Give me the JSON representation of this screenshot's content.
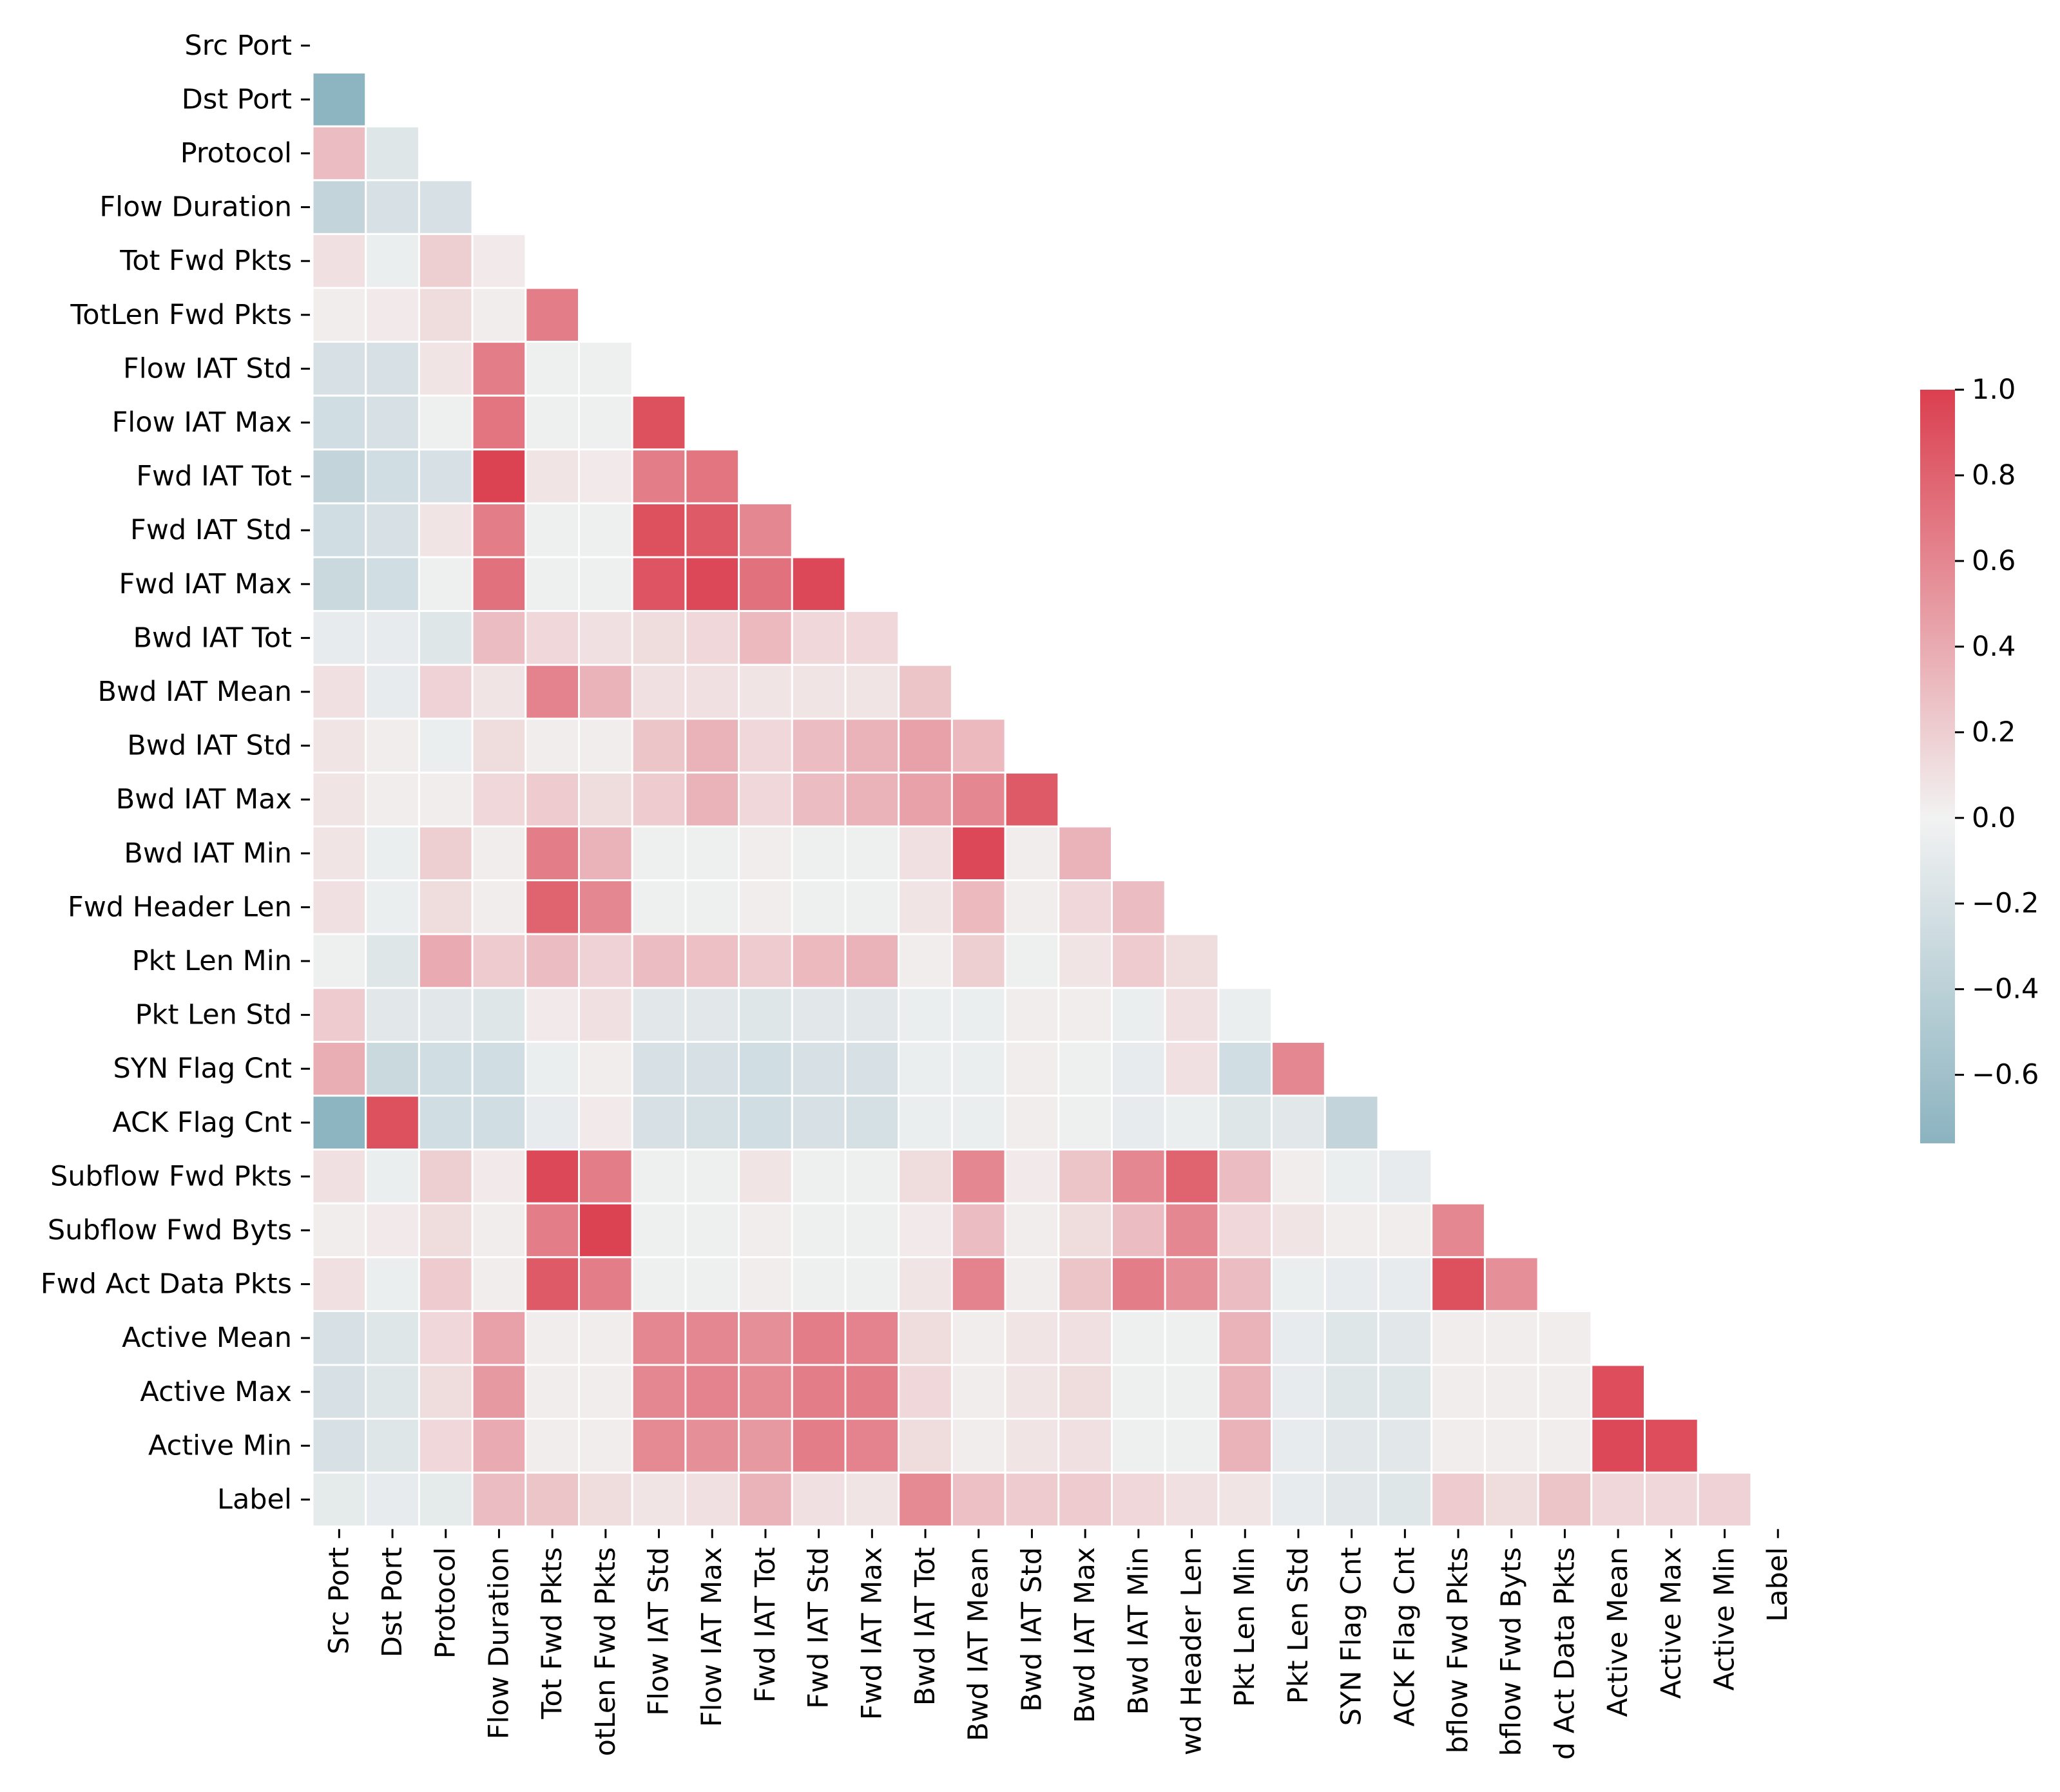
{
  "chart_data": {
    "type": "heatmap",
    "title": "",
    "xlabel": "",
    "ylabel": "",
    "labels": [
      "Src Port",
      "Dst Port",
      "Protocol",
      "Flow Duration",
      "Tot Fwd Pkts",
      "TotLen Fwd Pkts",
      "Flow IAT Std",
      "Flow IAT Max",
      "Fwd IAT Tot",
      "Fwd IAT Std",
      "Fwd IAT Max",
      "Bwd IAT Tot",
      "Bwd IAT Mean",
      "Bwd IAT Std",
      "Bwd IAT Max",
      "Bwd IAT Min",
      "Fwd Header Len",
      "Pkt Len Min",
      "Pkt Len Std",
      "SYN Flag Cnt",
      "ACK Flag Cnt",
      "Subflow Fwd Pkts",
      "Subflow Fwd Byts",
      "Fwd Act Data Pkts",
      "Active Mean",
      "Active Max",
      "Active Min",
      "Label"
    ],
    "x_tick_labels": [
      "Src Port",
      "Dst Port",
      "Protocol",
      "Flow Duration",
      "Tot Fwd Pkts",
      "otLen Fwd Pkts",
      "Flow IAT Std",
      "Flow IAT Max",
      "Fwd IAT Tot",
      "Fwd IAT Std",
      "Fwd IAT Max",
      "Bwd IAT Tot",
      "Bwd IAT Mean",
      "Bwd IAT Std",
      "Bwd IAT Max",
      "Bwd IAT Min",
      "wd Header Len",
      "Pkt Len Min",
      "Pkt Len Std",
      "SYN Flag Cnt",
      "ACK Flag Cnt",
      "bflow Fwd Pkts",
      "bflow Fwd Byts",
      "d Act Data Pkts",
      "Active Mean",
      "Active Max",
      "Active Min",
      "Label"
    ],
    "mask": "upper triangle including diagonal",
    "matrix": [
      [],
      [
        -0.75
      ],
      [
        0.3,
        -0.15
      ],
      [
        -0.35,
        -0.2,
        -0.2
      ],
      [
        0.1,
        -0.05,
        0.2,
        0.05
      ],
      [
        0.03,
        0.05,
        0.12,
        0.03,
        0.65
      ],
      [
        -0.2,
        -0.2,
        0.08,
        0.65,
        -0.03,
        -0.03
      ],
      [
        -0.25,
        -0.2,
        -0.03,
        0.7,
        -0.03,
        -0.03,
        0.9
      ],
      [
        -0.35,
        -0.25,
        -0.2,
        0.98,
        0.08,
        0.05,
        0.65,
        0.7
      ],
      [
        -0.25,
        -0.2,
        0.08,
        0.65,
        -0.03,
        -0.03,
        0.9,
        0.85,
        0.6
      ],
      [
        -0.3,
        -0.25,
        -0.03,
        0.72,
        -0.03,
        -0.03,
        0.88,
        0.95,
        0.72,
        0.95
      ],
      [
        -0.08,
        -0.08,
        -0.15,
        0.3,
        0.15,
        0.1,
        0.12,
        0.15,
        0.32,
        0.15,
        0.15
      ],
      [
        0.1,
        -0.08,
        0.18,
        0.08,
        0.62,
        0.35,
        0.1,
        0.1,
        0.08,
        0.08,
        0.08,
        0.25
      ],
      [
        0.08,
        0.03,
        -0.05,
        0.12,
        0.03,
        0.03,
        0.25,
        0.35,
        0.15,
        0.3,
        0.35,
        0.45,
        0.32
      ],
      [
        0.08,
        0.03,
        0.03,
        0.15,
        0.22,
        0.12,
        0.22,
        0.35,
        0.15,
        0.3,
        0.35,
        0.45,
        0.6,
        0.85
      ],
      [
        0.08,
        -0.05,
        0.2,
        0.03,
        0.65,
        0.35,
        -0.03,
        -0.03,
        0.03,
        -0.03,
        -0.03,
        0.1,
        0.95,
        0.03,
        0.35
      ],
      [
        0.1,
        -0.05,
        0.12,
        0.03,
        0.8,
        0.6,
        -0.03,
        -0.03,
        0.03,
        -0.03,
        -0.03,
        0.08,
        0.32,
        0.03,
        0.15,
        0.3
      ],
      [
        -0.03,
        -0.15,
        0.4,
        0.22,
        0.3,
        0.18,
        0.3,
        0.28,
        0.22,
        0.32,
        0.35,
        0.03,
        0.2,
        -0.03,
        0.08,
        0.22,
        0.12
      ],
      [
        0.22,
        -0.12,
        -0.12,
        -0.15,
        0.05,
        0.1,
        -0.12,
        -0.12,
        -0.15,
        -0.12,
        -0.12,
        -0.05,
        -0.05,
        0.03,
        0.03,
        -0.05,
        0.1,
        -0.05
      ],
      [
        0.38,
        -0.3,
        -0.25,
        -0.25,
        -0.05,
        0.03,
        -0.2,
        -0.2,
        -0.25,
        -0.2,
        -0.2,
        -0.05,
        -0.05,
        0.03,
        -0.03,
        -0.08,
        0.1,
        -0.25,
        0.6
      ],
      [
        -0.75,
        0.9,
        -0.25,
        -0.25,
        -0.08,
        0.05,
        -0.2,
        -0.22,
        -0.25,
        -0.2,
        -0.22,
        -0.05,
        -0.05,
        0.03,
        -0.03,
        -0.08,
        -0.05,
        -0.15,
        -0.12,
        -0.35
      ],
      [
        0.1,
        -0.05,
        0.2,
        0.05,
        0.95,
        0.65,
        -0.03,
        -0.03,
        0.08,
        -0.03,
        -0.03,
        0.12,
        0.6,
        0.05,
        0.25,
        0.6,
        0.8,
        0.3,
        0.03,
        -0.05,
        -0.08
      ],
      [
        0.03,
        0.05,
        0.12,
        0.03,
        0.65,
        0.98,
        -0.03,
        -0.03,
        0.03,
        -0.03,
        -0.03,
        0.05,
        0.3,
        0.03,
        0.12,
        0.3,
        0.6,
        0.15,
        0.08,
        0.03,
        0.03,
        0.6
      ],
      [
        0.1,
        -0.05,
        0.22,
        0.03,
        0.85,
        0.65,
        -0.03,
        -0.03,
        0.03,
        -0.03,
        -0.03,
        0.08,
        0.62,
        0.03,
        0.25,
        0.65,
        0.55,
        0.3,
        -0.05,
        -0.08,
        -0.08,
        0.9,
        0.55
      ],
      [
        -0.2,
        -0.15,
        0.15,
        0.45,
        0.03,
        0.03,
        0.6,
        0.6,
        0.55,
        0.65,
        0.62,
        0.12,
        0.03,
        0.08,
        0.1,
        -0.03,
        -0.03,
        0.35,
        -0.08,
        -0.15,
        -0.12,
        0.03,
        0.03,
        0.03
      ],
      [
        -0.2,
        -0.15,
        0.12,
        0.5,
        0.03,
        0.03,
        0.6,
        0.62,
        0.58,
        0.65,
        0.65,
        0.15,
        0.03,
        0.08,
        0.12,
        -0.03,
        -0.03,
        0.35,
        -0.08,
        -0.15,
        -0.15,
        0.03,
        0.03,
        0.03,
        0.92
      ],
      [
        -0.2,
        -0.15,
        0.15,
        0.4,
        0.03,
        0.03,
        0.58,
        0.55,
        0.5,
        0.65,
        0.62,
        0.12,
        0.03,
        0.08,
        0.1,
        -0.03,
        -0.03,
        0.35,
        -0.08,
        -0.12,
        -0.12,
        0.03,
        0.03,
        0.03,
        0.95,
        0.92
      ],
      [
        -0.1,
        -0.08,
        -0.1,
        0.3,
        0.25,
        0.12,
        0.08,
        0.1,
        0.35,
        0.1,
        0.08,
        0.58,
        0.28,
        0.22,
        0.22,
        0.15,
        0.1,
        0.08,
        -0.08,
        -0.12,
        -0.15,
        0.22,
        0.12,
        0.25,
        0.15,
        0.15,
        0.18
      ]
    ],
    "colorbar": {
      "vmin": -0.76,
      "vmax": 1.0,
      "ticks": [
        1.0,
        0.8,
        0.6,
        0.4,
        0.2,
        0.0,
        -0.2,
        -0.4,
        -0.6
      ],
      "tick_labels": [
        "1.0",
        "0.8",
        "0.6",
        "0.4",
        "0.2",
        "0.0",
        "−0.2",
        "−0.4",
        "−0.6"
      ],
      "palette": {
        "negative": "#6b9fb0",
        "neutral": "#f2f2f2",
        "positive": "#db3f4f"
      }
    }
  }
}
